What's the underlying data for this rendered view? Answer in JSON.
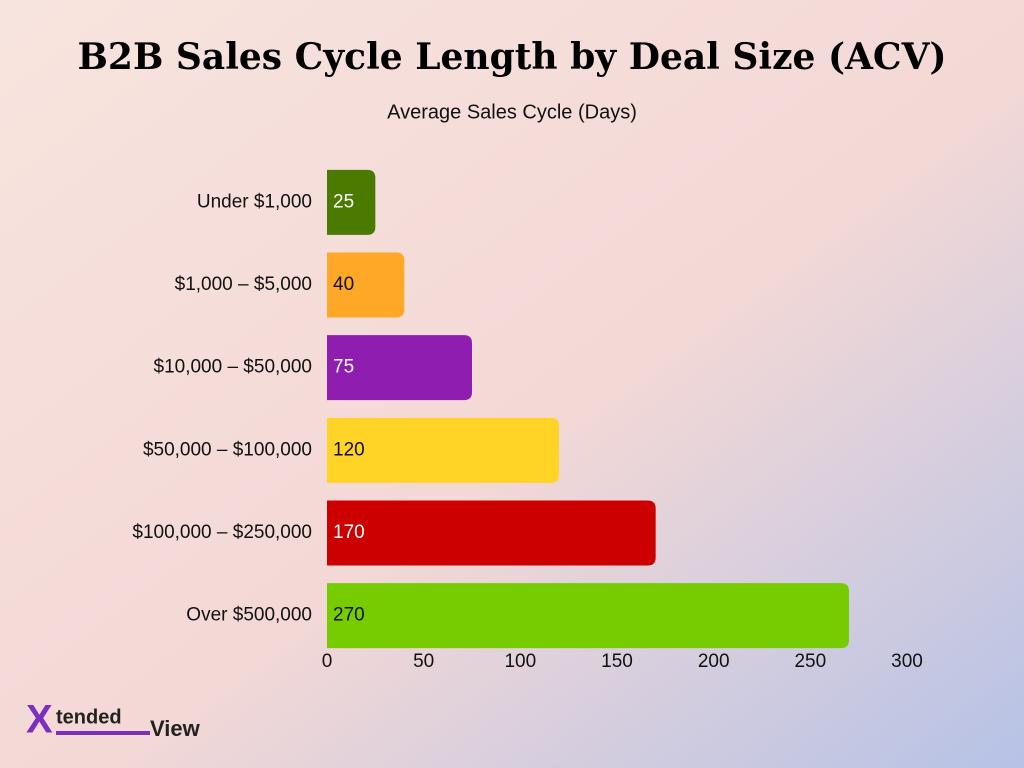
{
  "chart_data": {
    "type": "bar",
    "orientation": "horizontal",
    "title": "B2B Sales Cycle Length by Deal Size (ACV)",
    "subtitle": "Average Sales Cycle (Days)",
    "categories": [
      "Under $1,000",
      "$1,000 – $5,000",
      "$10,000 – $50,000",
      "$50,000 – $100,000",
      "$100,000 – $250,000",
      "Over $500,000"
    ],
    "values": [
      25,
      40,
      75,
      120,
      170,
      270
    ],
    "colors": [
      "#4a7a00",
      "#ffa726",
      "#8e1db0",
      "#ffd426",
      "#cc0000",
      "#76cc00"
    ],
    "xlim": [
      0,
      300
    ],
    "xticks": [
      0,
      50,
      100,
      150,
      200,
      250,
      300
    ],
    "grid": false
  },
  "logo": {
    "mark": "X",
    "word1": "tended",
    "word2": "View"
  }
}
